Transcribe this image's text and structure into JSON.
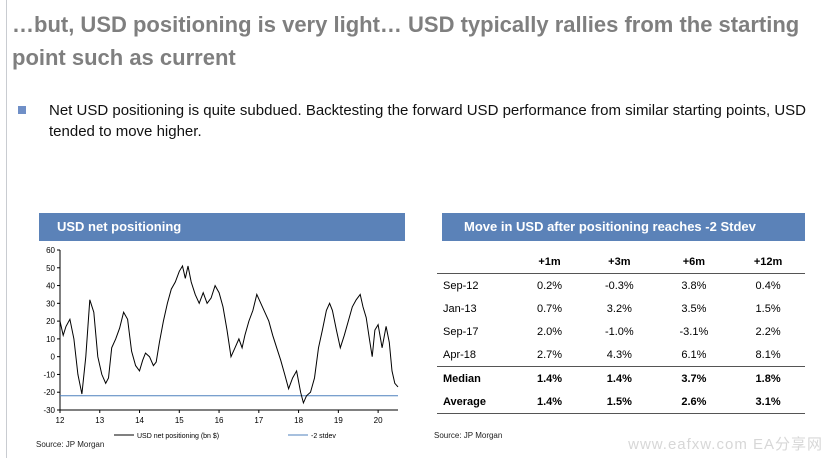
{
  "slide": {
    "title": "…but, USD positioning is very light… USD typically rallies from the starting point such as current",
    "bullet": "Net USD positioning is quite subdued. Backtesting the forward USD performance from similar starting points, USD tended to move higher.",
    "watermark": "www.eafxw.com EA分享网"
  },
  "colors": {
    "header": "#5b82b8",
    "series_line": "#000000",
    "threshold_line": "#4f81bd",
    "bullet": "#6f8fc7"
  },
  "chart_data": [
    {
      "type": "line",
      "title": "USD net positioning",
      "x_tick_labels": [
        "12",
        "13",
        "14",
        "15",
        "16",
        "17",
        "18",
        "19",
        "20"
      ],
      "y_ticks": [
        60,
        50,
        40,
        30,
        20,
        10,
        0,
        -10,
        -20,
        -30
      ],
      "ylim": [
        -30,
        60
      ],
      "xlim": [
        2012.0,
        2020.5
      ],
      "grid": false,
      "legend_position": "bottom",
      "source": "Source: JP Morgan",
      "series": [
        {
          "name": "USD net positioning (bn $)",
          "points": [
            [
              2012.0,
              20
            ],
            [
              2012.08,
              12
            ],
            [
              2012.15,
              17
            ],
            [
              2012.25,
              21
            ],
            [
              2012.35,
              10
            ],
            [
              2012.45,
              -10
            ],
            [
              2012.55,
              -21
            ],
            [
              2012.65,
              0
            ],
            [
              2012.75,
              32
            ],
            [
              2012.85,
              25
            ],
            [
              2012.95,
              0
            ],
            [
              2013.05,
              -10
            ],
            [
              2013.15,
              -15
            ],
            [
              2013.22,
              -12
            ],
            [
              2013.3,
              5
            ],
            [
              2013.4,
              10
            ],
            [
              2013.5,
              16
            ],
            [
              2013.6,
              25
            ],
            [
              2013.7,
              21
            ],
            [
              2013.8,
              3
            ],
            [
              2013.9,
              -5
            ],
            [
              2014.0,
              -8
            ],
            [
              2014.08,
              -2
            ],
            [
              2014.15,
              2
            ],
            [
              2014.25,
              0
            ],
            [
              2014.35,
              -5
            ],
            [
              2014.42,
              -3
            ],
            [
              2014.5,
              8
            ],
            [
              2014.6,
              20
            ],
            [
              2014.7,
              30
            ],
            [
              2014.8,
              38
            ],
            [
              2014.9,
              42
            ],
            [
              2015.0,
              48
            ],
            [
              2015.08,
              51
            ],
            [
              2015.15,
              44
            ],
            [
              2015.22,
              51
            ],
            [
              2015.3,
              42
            ],
            [
              2015.4,
              35
            ],
            [
              2015.5,
              30
            ],
            [
              2015.6,
              36
            ],
            [
              2015.7,
              30
            ],
            [
              2015.8,
              33
            ],
            [
              2015.9,
              40
            ],
            [
              2016.0,
              36
            ],
            [
              2016.1,
              28
            ],
            [
              2016.2,
              15
            ],
            [
              2016.3,
              0
            ],
            [
              2016.4,
              5
            ],
            [
              2016.5,
              10
            ],
            [
              2016.58,
              5
            ],
            [
              2016.65,
              12
            ],
            [
              2016.75,
              20
            ],
            [
              2016.85,
              26
            ],
            [
              2016.95,
              35
            ],
            [
              2017.05,
              30
            ],
            [
              2017.15,
              25
            ],
            [
              2017.25,
              20
            ],
            [
              2017.35,
              12
            ],
            [
              2017.45,
              5
            ],
            [
              2017.55,
              -2
            ],
            [
              2017.65,
              -10
            ],
            [
              2017.75,
              -18
            ],
            [
              2017.85,
              -12
            ],
            [
              2017.95,
              -8
            ],
            [
              2018.05,
              -20
            ],
            [
              2018.12,
              -26
            ],
            [
              2018.2,
              -22
            ],
            [
              2018.3,
              -20
            ],
            [
              2018.4,
              -12
            ],
            [
              2018.5,
              5
            ],
            [
              2018.6,
              15
            ],
            [
              2018.7,
              26
            ],
            [
              2018.78,
              30
            ],
            [
              2018.85,
              26
            ],
            [
              2018.95,
              15
            ],
            [
              2019.05,
              5
            ],
            [
              2019.15,
              12
            ],
            [
              2019.25,
              20
            ],
            [
              2019.35,
              28
            ],
            [
              2019.45,
              32
            ],
            [
              2019.55,
              35
            ],
            [
              2019.62,
              28
            ],
            [
              2019.7,
              22
            ],
            [
              2019.78,
              10
            ],
            [
              2019.85,
              0
            ],
            [
              2019.92,
              15
            ],
            [
              2020.0,
              18
            ],
            [
              2020.1,
              5
            ],
            [
              2020.2,
              17
            ],
            [
              2020.28,
              8
            ],
            [
              2020.35,
              -8
            ],
            [
              2020.42,
              -15
            ],
            [
              2020.5,
              -17
            ]
          ]
        },
        {
          "name": "-2 stdev",
          "value": -22
        }
      ]
    },
    {
      "type": "table",
      "title": "Move in USD  after positioning reaches -2 Stdev",
      "columns": [
        "",
        "+1m",
        "+3m",
        "+6m",
        "+12m"
      ],
      "rows": [
        {
          "label": "Sep-12",
          "values": [
            "0.2%",
            "-0.3%",
            "3.8%",
            "0.4%"
          ]
        },
        {
          "label": "Jan-13",
          "values": [
            "0.7%",
            "3.2%",
            "3.5%",
            "1.5%"
          ]
        },
        {
          "label": "Sep-17",
          "values": [
            "2.0%",
            "-1.0%",
            "-3.1%",
            "2.2%"
          ]
        },
        {
          "label": "Apr-18",
          "values": [
            "2.7%",
            "4.3%",
            "6.1%",
            "8.1%"
          ]
        },
        {
          "label": "Median",
          "values": [
            "1.4%",
            "1.4%",
            "3.7%",
            "1.8%"
          ]
        },
        {
          "label": "Average",
          "values": [
            "1.4%",
            "1.5%",
            "2.6%",
            "3.1%"
          ]
        }
      ],
      "source": "Source: JP Morgan"
    }
  ]
}
